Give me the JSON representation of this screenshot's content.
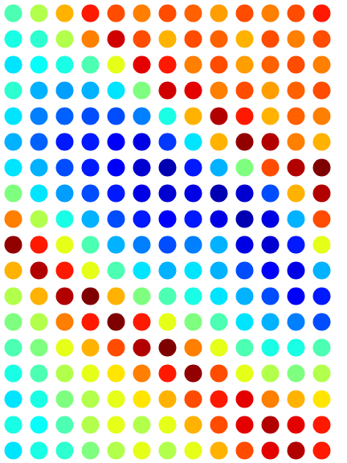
{
  "chart_data": {
    "type": "scatter",
    "tick_labels": false,
    "color": "jet",
    "xlim": [
      0,
      432
    ],
    "ylim": [
      576,
      0
    ],
    "color_range": [
      0,
      1
    ],
    "points": [
      [
        16,
        16,
        0.45
      ],
      [
        48,
        16,
        0.55
      ],
      [
        80,
        16,
        0.7
      ],
      [
        112,
        16,
        0.85
      ],
      [
        144,
        16,
        0.8
      ],
      [
        176,
        16,
        0.75
      ],
      [
        208,
        16,
        0.8
      ],
      [
        240,
        16,
        0.78
      ],
      [
        272,
        16,
        0.72
      ],
      [
        304,
        16,
        0.8
      ],
      [
        336,
        16,
        0.75
      ],
      [
        368,
        16,
        0.8
      ],
      [
        400,
        16,
        0.85
      ],
      [
        16,
        48,
        0.4
      ],
      [
        48,
        48,
        0.42
      ],
      [
        80,
        48,
        0.55
      ],
      [
        112,
        48,
        0.75
      ],
      [
        144,
        48,
        0.92
      ],
      [
        176,
        48,
        0.8
      ],
      [
        208,
        48,
        0.7
      ],
      [
        240,
        48,
        0.8
      ],
      [
        272,
        48,
        0.78
      ],
      [
        304,
        48,
        0.7
      ],
      [
        336,
        48,
        0.8
      ],
      [
        368,
        48,
        0.75
      ],
      [
        400,
        48,
        0.8
      ],
      [
        16,
        80,
        0.35
      ],
      [
        48,
        80,
        0.38
      ],
      [
        80,
        80,
        0.4
      ],
      [
        112,
        80,
        0.45
      ],
      [
        144,
        80,
        0.6
      ],
      [
        176,
        80,
        0.9
      ],
      [
        208,
        80,
        0.85
      ],
      [
        240,
        80,
        0.75
      ],
      [
        272,
        80,
        0.8
      ],
      [
        304,
        80,
        0.72
      ],
      [
        336,
        80,
        0.78
      ],
      [
        368,
        80,
        0.8
      ],
      [
        400,
        80,
        0.75
      ],
      [
        16,
        112,
        0.42
      ],
      [
        48,
        112,
        0.3
      ],
      [
        80,
        112,
        0.28
      ],
      [
        112,
        112,
        0.3
      ],
      [
        144,
        112,
        0.35
      ],
      [
        176,
        112,
        0.5
      ],
      [
        208,
        112,
        0.92
      ],
      [
        240,
        112,
        0.9
      ],
      [
        272,
        112,
        0.75
      ],
      [
        304,
        112,
        0.8
      ],
      [
        336,
        112,
        0.72
      ],
      [
        368,
        112,
        0.78
      ],
      [
        400,
        112,
        0.8
      ],
      [
        16,
        144,
        0.35
      ],
      [
        48,
        144,
        0.25
      ],
      [
        80,
        144,
        0.22
      ],
      [
        112,
        144,
        0.2
      ],
      [
        144,
        144,
        0.2
      ],
      [
        176,
        144,
        0.25
      ],
      [
        208,
        144,
        0.4
      ],
      [
        240,
        144,
        0.7
      ],
      [
        272,
        144,
        0.95
      ],
      [
        304,
        144,
        0.85
      ],
      [
        336,
        144,
        0.7
      ],
      [
        368,
        144,
        0.78
      ],
      [
        400,
        144,
        0.75
      ],
      [
        16,
        176,
        0.3
      ],
      [
        48,
        176,
        0.22
      ],
      [
        80,
        176,
        0.15
      ],
      [
        112,
        176,
        0.15
      ],
      [
        144,
        176,
        0.12
      ],
      [
        176,
        176,
        0.1
      ],
      [
        208,
        176,
        0.18
      ],
      [
        240,
        176,
        0.35
      ],
      [
        272,
        176,
        0.7
      ],
      [
        304,
        176,
        0.98
      ],
      [
        336,
        176,
        0.95
      ],
      [
        368,
        176,
        0.75
      ],
      [
        400,
        176,
        0.7
      ],
      [
        16,
        208,
        0.35
      ],
      [
        48,
        208,
        0.3
      ],
      [
        80,
        208,
        0.2
      ],
      [
        112,
        208,
        0.15
      ],
      [
        144,
        208,
        0.12
      ],
      [
        176,
        208,
        0.08
      ],
      [
        208,
        208,
        0.05
      ],
      [
        240,
        208,
        0.15
      ],
      [
        272,
        208,
        0.3
      ],
      [
        304,
        208,
        0.5
      ],
      [
        336,
        208,
        0.8
      ],
      [
        368,
        208,
        0.95
      ],
      [
        400,
        208,
        1.0
      ],
      [
        16,
        240,
        0.5
      ],
      [
        48,
        240,
        0.35
      ],
      [
        80,
        240,
        0.28
      ],
      [
        112,
        240,
        0.2
      ],
      [
        144,
        240,
        0.15
      ],
      [
        176,
        240,
        0.1
      ],
      [
        208,
        240,
        0.08
      ],
      [
        240,
        240,
        0.1
      ],
      [
        272,
        240,
        0.05
      ],
      [
        304,
        240,
        0.08
      ],
      [
        336,
        240,
        0.2
      ],
      [
        368,
        240,
        0.7
      ],
      [
        400,
        240,
        0.95
      ],
      [
        16,
        272,
        0.75
      ],
      [
        48,
        272,
        0.55
      ],
      [
        80,
        272,
        0.4
      ],
      [
        112,
        272,
        0.3
      ],
      [
        144,
        272,
        0.2
      ],
      [
        176,
        272,
        0.15
      ],
      [
        208,
        272,
        0.12
      ],
      [
        240,
        272,
        0.15
      ],
      [
        272,
        272,
        0.1
      ],
      [
        304,
        272,
        0.05
      ],
      [
        336,
        272,
        0.1
      ],
      [
        368,
        272,
        0.3
      ],
      [
        400,
        272,
        0.8
      ],
      [
        16,
        304,
        0.98
      ],
      [
        48,
        304,
        0.85
      ],
      [
        80,
        304,
        0.6
      ],
      [
        112,
        304,
        0.45
      ],
      [
        144,
        304,
        0.3
      ],
      [
        176,
        304,
        0.25
      ],
      [
        208,
        304,
        0.2
      ],
      [
        240,
        304,
        0.25
      ],
      [
        272,
        304,
        0.3
      ],
      [
        304,
        304,
        0.1
      ],
      [
        336,
        304,
        0.08
      ],
      [
        368,
        304,
        0.15
      ],
      [
        400,
        304,
        0.6
      ],
      [
        16,
        336,
        0.7
      ],
      [
        48,
        336,
        0.95
      ],
      [
        80,
        336,
        0.85
      ],
      [
        112,
        336,
        0.6
      ],
      [
        144,
        336,
        0.45
      ],
      [
        176,
        336,
        0.35
      ],
      [
        208,
        336,
        0.3
      ],
      [
        240,
        336,
        0.35
      ],
      [
        272,
        336,
        0.3
      ],
      [
        304,
        336,
        0.2
      ],
      [
        336,
        336,
        0.12
      ],
      [
        368,
        336,
        0.1
      ],
      [
        400,
        336,
        0.3
      ],
      [
        16,
        368,
        0.55
      ],
      [
        48,
        368,
        0.7
      ],
      [
        80,
        368,
        0.95
      ],
      [
        112,
        368,
        1.0
      ],
      [
        144,
        368,
        0.7
      ],
      [
        176,
        368,
        0.5
      ],
      [
        208,
        368,
        0.45
      ],
      [
        240,
        368,
        0.4
      ],
      [
        272,
        368,
        0.35
      ],
      [
        304,
        368,
        0.3
      ],
      [
        336,
        368,
        0.2
      ],
      [
        368,
        368,
        0.12
      ],
      [
        400,
        368,
        0.15
      ],
      [
        16,
        400,
        0.5
      ],
      [
        48,
        400,
        0.55
      ],
      [
        80,
        400,
        0.75
      ],
      [
        112,
        400,
        0.85
      ],
      [
        144,
        400,
        1.0
      ],
      [
        176,
        400,
        0.85
      ],
      [
        208,
        400,
        0.6
      ],
      [
        240,
        400,
        0.5
      ],
      [
        272,
        400,
        0.45
      ],
      [
        304,
        400,
        0.35
      ],
      [
        336,
        400,
        0.3
      ],
      [
        368,
        400,
        0.25
      ],
      [
        400,
        400,
        0.2
      ],
      [
        16,
        432,
        0.45
      ],
      [
        48,
        432,
        0.5
      ],
      [
        80,
        432,
        0.6
      ],
      [
        112,
        432,
        0.7
      ],
      [
        144,
        432,
        0.8
      ],
      [
        176,
        432,
        0.95
      ],
      [
        208,
        432,
        1.0
      ],
      [
        240,
        432,
        0.75
      ],
      [
        272,
        432,
        0.6
      ],
      [
        304,
        432,
        0.45
      ],
      [
        336,
        432,
        0.4
      ],
      [
        368,
        432,
        0.4
      ],
      [
        400,
        432,
        0.45
      ],
      [
        16,
        464,
        0.4
      ],
      [
        48,
        464,
        0.45
      ],
      [
        80,
        464,
        0.55
      ],
      [
        112,
        464,
        0.6
      ],
      [
        144,
        464,
        0.65
      ],
      [
        176,
        464,
        0.75
      ],
      [
        208,
        464,
        0.85
      ],
      [
        240,
        464,
        0.98
      ],
      [
        272,
        464,
        0.8
      ],
      [
        304,
        464,
        0.6
      ],
      [
        336,
        464,
        0.55
      ],
      [
        368,
        464,
        0.5
      ],
      [
        400,
        464,
        0.55
      ],
      [
        16,
        496,
        0.35
      ],
      [
        48,
        496,
        0.4
      ],
      [
        80,
        496,
        0.5
      ],
      [
        112,
        496,
        0.55
      ],
      [
        144,
        496,
        0.6
      ],
      [
        176,
        496,
        0.65
      ],
      [
        208,
        496,
        0.7
      ],
      [
        240,
        496,
        0.8
      ],
      [
        272,
        496,
        0.85
      ],
      [
        304,
        496,
        0.9
      ],
      [
        336,
        496,
        0.75
      ],
      [
        368,
        496,
        0.7
      ],
      [
        400,
        496,
        0.65
      ],
      [
        16,
        528,
        0.4
      ],
      [
        48,
        528,
        0.38
      ],
      [
        80,
        528,
        0.45
      ],
      [
        112,
        528,
        0.55
      ],
      [
        144,
        528,
        0.6
      ],
      [
        176,
        528,
        0.55
      ],
      [
        208,
        528,
        0.6
      ],
      [
        240,
        528,
        0.7
      ],
      [
        272,
        528,
        0.8
      ],
      [
        304,
        528,
        0.9
      ],
      [
        336,
        528,
        0.95
      ],
      [
        368,
        528,
        0.9
      ],
      [
        400,
        528,
        0.85
      ],
      [
        16,
        560,
        0.35
      ],
      [
        48,
        560,
        0.4
      ],
      [
        80,
        560,
        0.42
      ],
      [
        112,
        560,
        0.5
      ],
      [
        144,
        560,
        0.55
      ],
      [
        176,
        560,
        0.6
      ],
      [
        208,
        560,
        0.55
      ],
      [
        240,
        560,
        0.6
      ],
      [
        272,
        560,
        0.7
      ],
      [
        304,
        560,
        0.8
      ],
      [
        336,
        560,
        0.9
      ],
      [
        368,
        560,
        0.95
      ],
      [
        400,
        560,
        0.85
      ]
    ]
  }
}
